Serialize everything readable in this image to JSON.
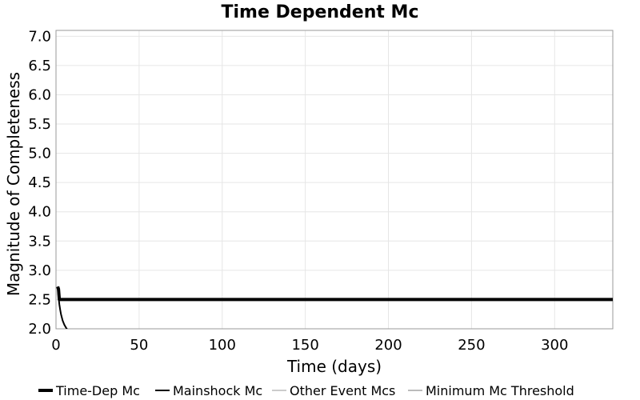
{
  "chart_data": {
    "type": "line",
    "title": "Time Dependent Mc",
    "xlabel": "Time (days)",
    "ylabel": "Magnitude of Completeness",
    "xlim": [
      0,
      335
    ],
    "ylim": [
      2.0,
      7.1
    ],
    "xticks": [
      "0",
      "50",
      "100",
      "150",
      "200",
      "250",
      "300"
    ],
    "xtick_values": [
      0,
      50,
      100,
      150,
      200,
      250,
      300
    ],
    "yticks": [
      "2.0",
      "2.5",
      "3.0",
      "3.5",
      "4.0",
      "4.5",
      "5.0",
      "5.5",
      "6.0",
      "6.5",
      "7.0"
    ],
    "ytick_values": [
      2.0,
      2.5,
      3.0,
      3.5,
      4.0,
      4.5,
      5.0,
      5.5,
      6.0,
      6.5,
      7.0
    ],
    "grid": true,
    "legend_position": "bottom",
    "series": [
      {
        "name": "Time-Dep Mc",
        "color": "#000000",
        "style": "thick",
        "x": [
          1.0,
          1.5,
          2.0,
          2.5,
          3.0,
          5,
          10,
          50,
          100,
          150,
          200,
          250,
          300,
          335
        ],
        "y": [
          2.72,
          2.68,
          2.5,
          2.5,
          2.5,
          2.5,
          2.5,
          2.5,
          2.5,
          2.5,
          2.5,
          2.5,
          2.5,
          2.5
        ]
      },
      {
        "name": "Mainshock Mc",
        "color": "#000000",
        "style": "medium",
        "x": [
          1.0,
          1.5,
          2.0,
          2.5,
          3.0,
          4.0,
          5.0,
          6.0,
          7.0
        ],
        "y": [
          2.72,
          2.55,
          2.42,
          2.33,
          2.25,
          2.14,
          2.07,
          2.02,
          1.98
        ]
      },
      {
        "name": "Other Event Mcs",
        "color": "#999999",
        "style": "thin",
        "x": [],
        "y": []
      },
      {
        "name": "Minimum Mc Threshold",
        "color": "#bbbbbb",
        "style": "light",
        "x": [],
        "y": []
      }
    ]
  }
}
